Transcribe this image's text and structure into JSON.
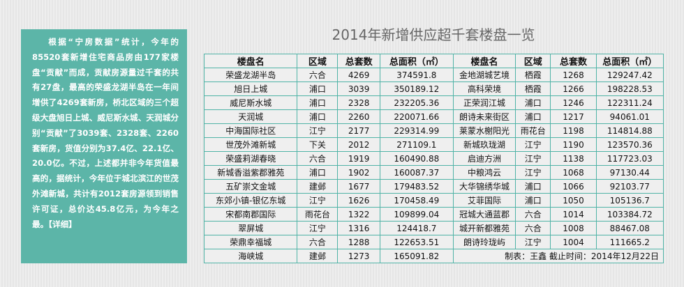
{
  "summary": {
    "text": "根据“宁房数据”统计，今年的85520套新增住宅商品房由177家楼盘“贡献”而成，贡献房源量过千套的共有27盘，最高的荣盛龙湖半岛在一年间增供了4269套新房，桥北区域的三个超级大盘旭日上城、威尼斯水城、天润城分别“贡献”了3039套、2328套、2260套新房，货值分别为37.4亿、22.1亿、20.0亿。不过，上述都并非今年货值最高的，据统计，今年位于城北滨江的世茂外滩新城，共计有2012套房源领到销售许可证，总价达45.8亿元，为今年之最。",
    "link": "【详细】"
  },
  "title": "2014年新增供应超千套楼盘一览",
  "table": {
    "headers": [
      "楼盘名",
      "区域",
      "总套数",
      "总面积（㎡）",
      "楼盘名",
      "区域",
      "总套数",
      "总面积（㎡）"
    ],
    "rows": [
      [
        "荣盛龙湖半岛",
        "六合",
        "4269",
        "374591.8",
        "金地湖城艺境",
        "栖霞",
        "1268",
        "129247.42"
      ],
      [
        "旭日上城",
        "浦口",
        "3039",
        "350189.12",
        "高科荣境",
        "栖霞",
        "1266",
        "198228.53"
      ],
      [
        "威尼斯水城",
        "浦口",
        "2328",
        "232205.36",
        "正荣润江城",
        "浦口",
        "1246",
        "122311.24"
      ],
      [
        "天润城",
        "浦口",
        "2260",
        "220071.66",
        "朗诗未来街区",
        "浦口",
        "1217",
        "94061.01"
      ],
      [
        "中海国际社区",
        "江宁",
        "2177",
        "229314.99",
        "莱蒙水榭阳光",
        "雨花台",
        "1198",
        "114814.88"
      ],
      [
        "世茂外滩新城",
        "下关",
        "2012",
        "271109.1",
        "新城玖珑湖",
        "江宁",
        "1190",
        "123570.36"
      ],
      [
        "荣盛莉湖春晓",
        "六合",
        "1919",
        "160490.88",
        "启迪方洲",
        "江宁",
        "1138",
        "117723.03"
      ],
      [
        "新城香溢紫郡雅苑",
        "浦口",
        "1902",
        "160087.37",
        "中粮鸿云",
        "江宁",
        "1068",
        "97130.44"
      ],
      [
        "五矿崇文金城",
        "建邺",
        "1677",
        "179483.52",
        "大华锦绣华城",
        "浦口",
        "1066",
        "92103.77"
      ],
      [
        "东郊小镇-银亿东城",
        "江宁",
        "1626",
        "170458.49",
        "艾菲国际",
        "浦口",
        "1050",
        "105136.7"
      ],
      [
        "宋都南郡国际",
        "雨花台",
        "1322",
        "109899.04",
        "冠城大通蓝郡",
        "六合",
        "1014",
        "103384.72"
      ],
      [
        "翠屏城",
        "江宁",
        "1316",
        "124418.7",
        "城开新都雅苑",
        "六合",
        "1008",
        "88467.08"
      ],
      [
        "荣鼎幸福城",
        "六合",
        "1288",
        "122653.51",
        "朗诗玲珑屿",
        "江宁",
        "1004",
        "111665.2"
      ],
      [
        "海峡城",
        "建邺",
        "1273",
        "165091.82"
      ]
    ],
    "footer": "制表：王鑫 截止时间：2014年12月22日"
  },
  "colors": {
    "panel": "#5cb5a8",
    "border": "#4fb3a6"
  }
}
